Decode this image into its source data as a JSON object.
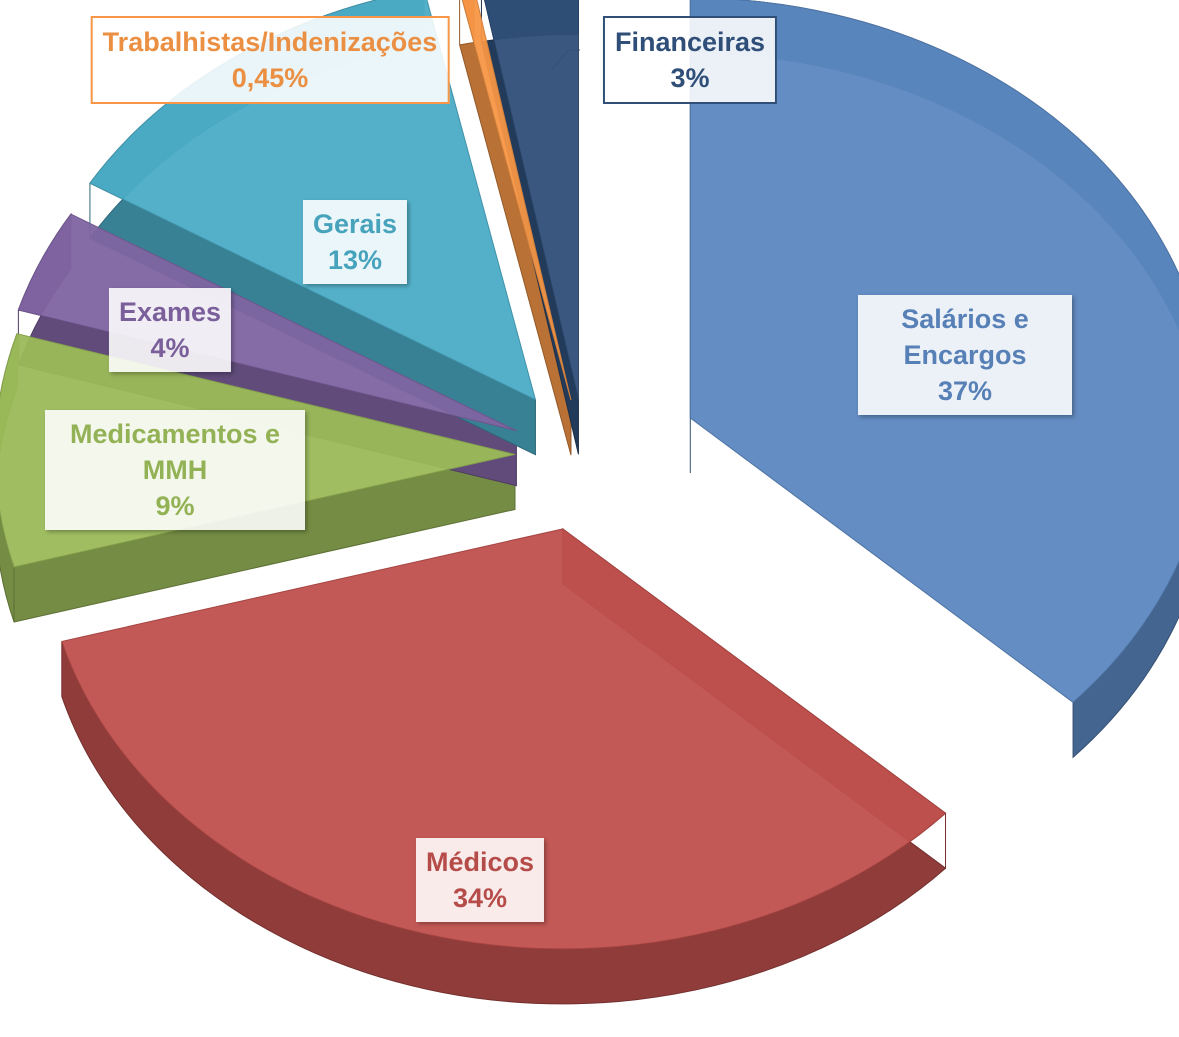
{
  "chart_data": {
    "type": "pie",
    "categories": [
      "Salários e Encargos",
      "Médicos",
      "Medicamentos e MMH",
      "Exames",
      "Gerais",
      "Trabalhistas/Indenizações",
      "Financeiras"
    ],
    "values": [
      37,
      34,
      9,
      4,
      13,
      0.45,
      3
    ],
    "value_labels": [
      "37%",
      "34%",
      "9%",
      "4%",
      "13%",
      "0,45%",
      "3%"
    ],
    "colors": [
      "#5b87c0",
      "#c0504d",
      "#9bbb59",
      "#8064a2",
      "#4bacc6",
      "#f79646",
      "#2f4f78"
    ]
  }
}
